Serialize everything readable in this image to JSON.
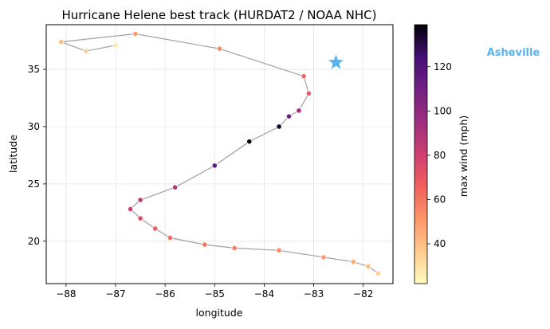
{
  "chart_data": {
    "type": "scatter",
    "title": "Hurricane Helene best track (HURDAT2 / NOAA NHC)",
    "xlabel": "longitude",
    "ylabel": "latitude",
    "xlim": [
      -88.4,
      -81.4
    ],
    "ylim": [
      16.3,
      38.9
    ],
    "x_ticks": [
      -88,
      -87,
      -86,
      -85,
      -84,
      -83,
      -82
    ],
    "x_tick_labels": [
      "−88",
      "−87",
      "−86",
      "−85",
      "−84",
      "−83",
      "−82"
    ],
    "y_ticks": [
      20,
      25,
      30,
      35
    ],
    "y_tick_labels": [
      "20",
      "25",
      "30",
      "35"
    ],
    "grid": true,
    "colormap": "magma_r",
    "track_color": "#a0a0a0",
    "colorbar": {
      "label": "max wind (mph)",
      "range": [
        22,
        139
      ],
      "ticks": [
        40,
        60,
        80,
        100,
        120
      ],
      "tick_labels": [
        "40",
        "60",
        "80",
        "100",
        "120"
      ]
    },
    "points": [
      {
        "lon": -81.7,
        "lat": 17.2,
        "wind": 35
      },
      {
        "lon": -81.9,
        "lat": 17.8,
        "wind": 40
      },
      {
        "lon": -82.2,
        "lat": 18.2,
        "wind": 45
      },
      {
        "lon": -82.8,
        "lat": 18.6,
        "wind": 50
      },
      {
        "lon": -83.7,
        "lat": 19.2,
        "wind": 55
      },
      {
        "lon": -84.6,
        "lat": 19.4,
        "wind": 58
      },
      {
        "lon": -85.2,
        "lat": 19.7,
        "wind": 60
      },
      {
        "lon": -85.9,
        "lat": 20.3,
        "wind": 62
      },
      {
        "lon": -86.2,
        "lat": 21.1,
        "wind": 68
      },
      {
        "lon": -86.5,
        "lat": 22.0,
        "wind": 75
      },
      {
        "lon": -86.7,
        "lat": 22.8,
        "wind": 80
      },
      {
        "lon": -86.5,
        "lat": 23.6,
        "wind": 85
      },
      {
        "lon": -85.8,
        "lat": 24.7,
        "wind": 90
      },
      {
        "lon": -85.0,
        "lat": 26.6,
        "wind": 115
      },
      {
        "lon": -84.3,
        "lat": 28.7,
        "wind": 139
      },
      {
        "lon": -83.7,
        "lat": 30.0,
        "wind": 135
      },
      {
        "lon": -83.5,
        "lat": 30.9,
        "wind": 110
      },
      {
        "lon": -83.3,
        "lat": 31.4,
        "wind": 95
      },
      {
        "lon": -83.1,
        "lat": 32.9,
        "wind": 70
      },
      {
        "lon": -83.2,
        "lat": 34.4,
        "wind": 65
      },
      {
        "lon": -84.9,
        "lat": 36.8,
        "wind": 55
      },
      {
        "lon": -86.6,
        "lat": 38.1,
        "wind": 50
      },
      {
        "lon": -88.1,
        "lat": 37.4,
        "wind": 40
      },
      {
        "lon": -87.6,
        "lat": 36.6,
        "wind": 35
      },
      {
        "lon": -87.0,
        "lat": 37.1,
        "wind": 28
      }
    ],
    "annotations": [
      {
        "label": "Asheville",
        "lon": -82.55,
        "lat": 35.6,
        "marker": "star",
        "color": "#5ab4f0"
      }
    ]
  }
}
